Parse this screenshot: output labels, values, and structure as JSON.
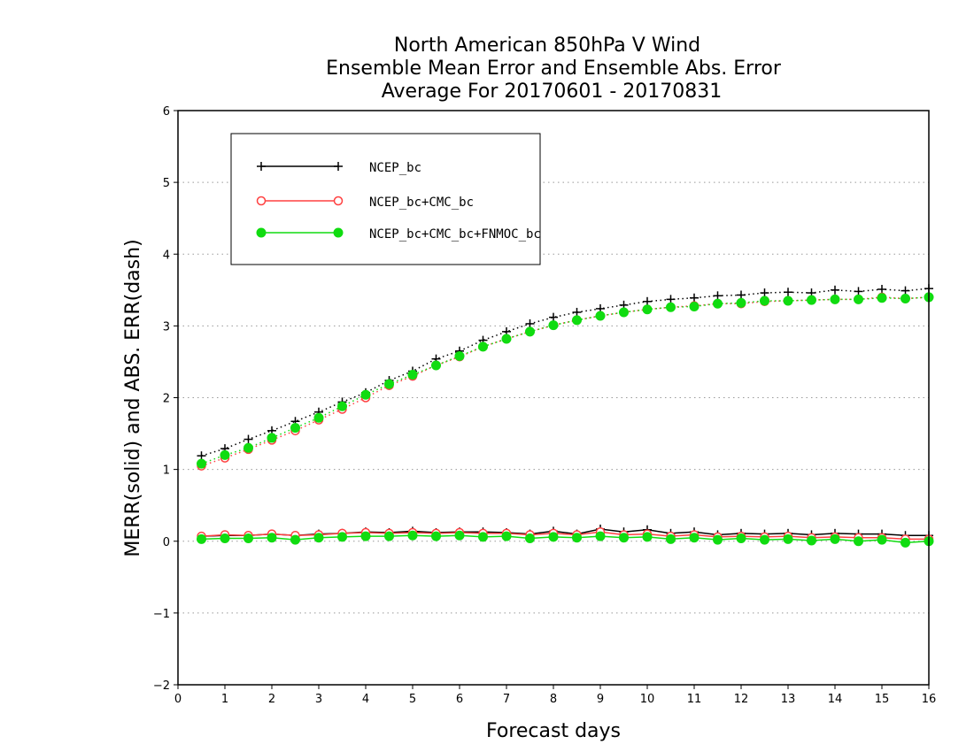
{
  "chart_data": {
    "type": "line",
    "title_lines": [
      "North American 850hPa V Wind",
      "Ensemble Mean Error and Ensemble Abs. Error",
      "Average For 20170601 - 20170831"
    ],
    "xlabel": "Forecast days",
    "ylabel": "MERR(solid) and ABS. ERR(dash)",
    "xlim": [
      0,
      16
    ],
    "ylim": [
      -2,
      6
    ],
    "x_ticks": [
      0,
      1,
      2,
      3,
      4,
      5,
      6,
      7,
      8,
      9,
      10,
      11,
      12,
      13,
      14,
      15,
      16
    ],
    "x_tick_labels": [
      "0",
      "1",
      "2",
      "3",
      "4",
      "5",
      "6",
      "7",
      "8",
      "9",
      "10",
      "11",
      "12",
      "13",
      "14",
      "15",
      "16"
    ],
    "y_ticks": [
      -2,
      -1,
      0,
      1,
      2,
      3,
      4,
      5,
      6
    ],
    "y_tick_labels": [
      "−2",
      "−1",
      "0",
      "1",
      "2",
      "3",
      "4",
      "5",
      "6"
    ],
    "grid": "horizontal dotted",
    "legend_position": "top-left",
    "x": [
      0.5,
      1,
      1.5,
      2,
      2.5,
      3,
      3.5,
      4,
      4.5,
      5,
      5.5,
      6,
      6.5,
      7,
      7.5,
      8,
      8.5,
      9,
      9.5,
      10,
      10.5,
      11,
      11.5,
      12,
      12.5,
      13,
      13.5,
      14,
      14.5,
      15,
      15.5,
      16
    ],
    "series": [
      {
        "name": "NCEP_bc",
        "color": "#000000",
        "marker": "plus",
        "merr": [
          0.07,
          0.08,
          0.08,
          0.1,
          0.08,
          0.1,
          0.11,
          0.13,
          0.12,
          0.14,
          0.12,
          0.13,
          0.13,
          0.12,
          0.1,
          0.14,
          0.1,
          0.17,
          0.13,
          0.16,
          0.11,
          0.13,
          0.09,
          0.11,
          0.1,
          0.11,
          0.09,
          0.11,
          0.1,
          0.1,
          0.08,
          0.08
        ],
        "abs_err": [
          1.19,
          1.29,
          1.42,
          1.54,
          1.67,
          1.8,
          1.94,
          2.07,
          2.24,
          2.37,
          2.54,
          2.65,
          2.8,
          2.92,
          3.03,
          3.12,
          3.19,
          3.24,
          3.29,
          3.34,
          3.37,
          3.39,
          3.42,
          3.43,
          3.46,
          3.47,
          3.46,
          3.5,
          3.48,
          3.51,
          3.49,
          3.52
        ]
      },
      {
        "name": "NCEP_bc+CMC_bc",
        "color": "#ff4040",
        "marker": "open-circle",
        "merr": [
          0.07,
          0.09,
          0.08,
          0.1,
          0.08,
          0.09,
          0.11,
          0.12,
          0.11,
          0.12,
          0.11,
          0.12,
          0.11,
          0.11,
          0.09,
          0.11,
          0.09,
          0.13,
          0.09,
          0.1,
          0.07,
          0.09,
          0.06,
          0.07,
          0.06,
          0.07,
          0.05,
          0.06,
          0.05,
          0.05,
          0.03,
          0.03
        ],
        "abs_err": [
          1.05,
          1.16,
          1.28,
          1.41,
          1.54,
          1.69,
          1.84,
          2.0,
          2.17,
          2.3,
          2.45,
          2.57,
          2.71,
          2.82,
          2.92,
          3.01,
          3.08,
          3.14,
          3.19,
          3.23,
          3.26,
          3.28,
          3.31,
          3.31,
          3.34,
          3.35,
          3.36,
          3.37,
          3.37,
          3.4,
          3.38,
          3.4
        ]
      },
      {
        "name": "NCEP_bc+CMC_bc+FNMOC_bc",
        "color": "#10dc10",
        "marker": "filled-circle",
        "merr": [
          0.03,
          0.04,
          0.04,
          0.05,
          0.02,
          0.05,
          0.06,
          0.07,
          0.07,
          0.08,
          0.07,
          0.08,
          0.06,
          0.07,
          0.04,
          0.06,
          0.05,
          0.07,
          0.05,
          0.06,
          0.03,
          0.05,
          0.02,
          0.04,
          0.02,
          0.03,
          0.01,
          0.03,
          0.0,
          0.02,
          -0.02,
          0.0
        ],
        "abs_err": [
          1.08,
          1.2,
          1.3,
          1.44,
          1.58,
          1.72,
          1.88,
          2.04,
          2.19,
          2.32,
          2.45,
          2.58,
          2.71,
          2.82,
          2.92,
          3.01,
          3.08,
          3.14,
          3.19,
          3.23,
          3.26,
          3.27,
          3.31,
          3.32,
          3.35,
          3.35,
          3.36,
          3.37,
          3.37,
          3.39,
          3.38,
          3.4
        ]
      }
    ]
  }
}
